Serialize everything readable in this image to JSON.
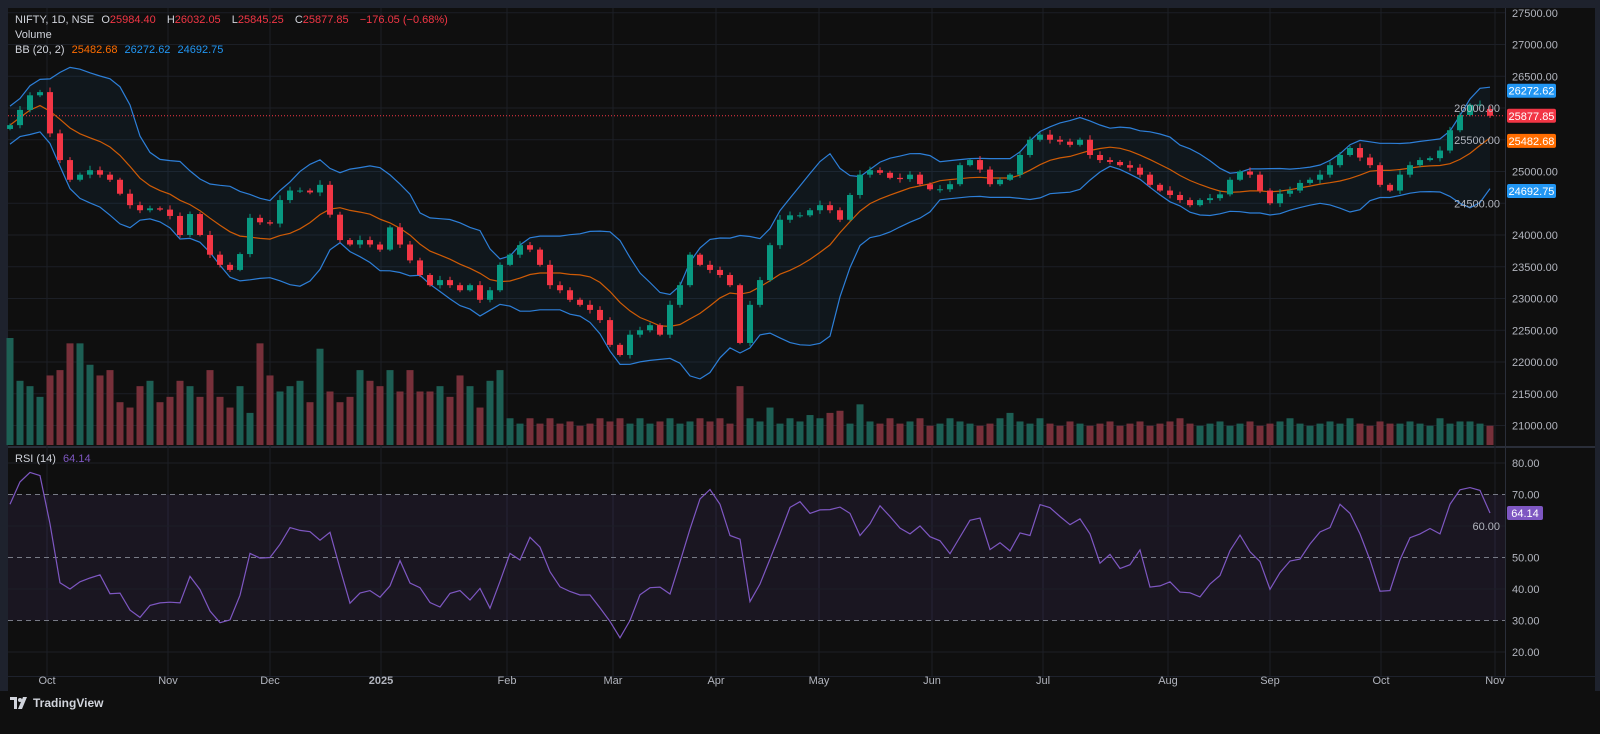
{
  "legend": {
    "symbol": "NIFTY, 1D, NSE",
    "open_label": "O",
    "open": "25984.40",
    "high_label": "H",
    "high": "26032.05",
    "low_label": "L",
    "low": "25845.25",
    "close_label": "C",
    "close": "25877.85",
    "change": "−176.05 (−0.68%)",
    "volume_label": "Volume",
    "bb_label": "BB (20, 2)",
    "bb_basis": "25482.68",
    "bb_upper": "26272.62",
    "bb_lower": "24692.75",
    "rsi_label": "RSI (14)",
    "rsi_value": "64.14"
  },
  "colors": {
    "up": "#089981",
    "down": "#f23645",
    "bb_basis": "#ff6d00",
    "bb_band": "#2d7fd8",
    "rsi": "#7e57c2",
    "badge_blue": "#2196f3"
  },
  "footer": {
    "brand": "TradingView"
  },
  "chart_data": {
    "type": "candlestick",
    "title": "NIFTY, 1D, NSE",
    "sampling": "every ~2 trading days",
    "last_candle": {
      "open": 25984.4,
      "high": 26032.05,
      "low": 25845.25,
      "close": 25877.85
    },
    "closes": [
      25730,
      25970,
      26200,
      26250,
      25600,
      25180,
      24870,
      24950,
      25020,
      24950,
      24870,
      24650,
      24470,
      24390,
      24420,
      24400,
      24300,
      24000,
      24330,
      24000,
      23690,
      23530,
      23450,
      23700,
      24270,
      24200,
      24180,
      24550,
      24700,
      24700,
      24670,
      24790,
      24320,
      23920,
      23850,
      23920,
      23850,
      23770,
      24120,
      23850,
      23600,
      23370,
      23210,
      23290,
      23210,
      23130,
      23210,
      22980,
      23130,
      23530,
      23690,
      23840,
      23770,
      23530,
      23210,
      23130,
      22980,
      22900,
      22820,
      22660,
      22270,
      22110,
      22430,
      22500,
      22580,
      22430,
      22900,
      23210,
      23690,
      23530,
      23450,
      23370,
      23210,
      22300,
      22900,
      23290,
      23840,
      24240,
      24310,
      24310,
      24390,
      24470,
      24390,
      24240,
      24630,
      24950,
      25020,
      24980,
      24900,
      24880,
      24950,
      24800,
      24720,
      24720,
      24800,
      25100,
      25180,
      25030,
      24800,
      24870,
      24950,
      25260,
      25500,
      25580,
      25500,
      25470,
      25420,
      25500,
      25260,
      25180,
      25150,
      25100,
      25060,
      24950,
      24790,
      24700,
      24630,
      24550,
      24470,
      24550,
      24580,
      24640,
      24870,
      25000,
      24950,
      24700,
      24500,
      24650,
      24700,
      24820,
      24870,
      24950,
      25100,
      25260,
      25370,
      25220,
      25100,
      24790,
      24700,
      24950,
      25100,
      25180,
      25210,
      25330,
      25650,
      25890,
      26050,
      26053.9,
      25877.85
    ],
    "volume_relative": [
      100,
      60,
      55,
      45,
      65,
      70,
      95,
      95,
      75,
      65,
      70,
      40,
      35,
      55,
      60,
      40,
      45,
      60,
      55,
      45,
      70,
      45,
      35,
      55,
      30,
      95,
      65,
      50,
      55,
      60,
      40,
      90,
      50,
      40,
      45,
      70,
      60,
      55,
      70,
      50,
      70,
      50,
      50,
      55,
      45,
      65,
      55,
      35,
      60,
      70,
      25,
      20,
      25,
      20,
      25,
      20,
      22,
      18,
      20,
      25,
      22,
      25,
      20,
      25,
      20,
      22,
      25,
      20,
      22,
      25,
      22,
      25,
      20,
      55,
      25,
      22,
      35,
      20,
      25,
      22,
      28,
      25,
      30,
      32,
      20,
      38,
      22,
      20,
      25,
      20,
      22,
      25,
      18,
      20,
      25,
      22,
      20,
      18,
      20,
      25,
      30,
      22,
      20,
      25,
      20,
      18,
      22,
      20,
      18,
      20,
      22,
      18,
      20,
      22,
      18,
      20,
      22,
      25,
      20,
      18,
      20,
      22,
      18,
      20,
      22,
      18,
      20,
      22,
      25,
      20,
      18,
      20,
      22,
      20,
      25,
      20,
      18,
      22,
      20,
      20,
      22,
      20,
      18,
      25,
      20,
      22,
      22,
      20,
      18
    ],
    "rsi": [
      66.9,
      74,
      77,
      76,
      60.7,
      42,
      40,
      42.3,
      43.5,
      44.5,
      38.5,
      38.7,
      33.3,
      31,
      34.8,
      35.6,
      35.8,
      35.6,
      44,
      39.8,
      33,
      29.3,
      30.2,
      38,
      51.3,
      49.8,
      50,
      54.2,
      59.5,
      58.6,
      58.2,
      55.5,
      58,
      46.5,
      35.5,
      38.7,
      39.5,
      37.4,
      41,
      49,
      41.9,
      40.4,
      35.7,
      34.3,
      38.6,
      39.5,
      36.5,
      40.2,
      33.9,
      42.4,
      51.3,
      49.2,
      56.4,
      53.3,
      45.5,
      40.7,
      39.2,
      38.1,
      38.1,
      34,
      29.7,
      24.5,
      30,
      38.2,
      40.4,
      40.6,
      38.4,
      48.6,
      59,
      68.6,
      71.6,
      66.9,
      57,
      55.8,
      36,
      41.6,
      49.5,
      57.5,
      65.9,
      67.7,
      64,
      65.1,
      65.2,
      66,
      64,
      57,
      60.7,
      66.4,
      63,
      59.3,
      57.5,
      60,
      56.6,
      55.3,
      51.2,
      56.5,
      61.8,
      62.5,
      52.5,
      54.7,
      52.1,
      57.8,
      57,
      66.8,
      65.8,
      63,
      60.4,
      62.3,
      57.5,
      48.2,
      51,
      46.5,
      47.7,
      52.4,
      40.6,
      41,
      42.3,
      39,
      38.8,
      37.5,
      41.6,
      44.3,
      52.2,
      57.1,
      51.8,
      48.7,
      39.9,
      45.2,
      48.9,
      49.5,
      54.3,
      58.1,
      59.5,
      66.9,
      64,
      57.5,
      49.2,
      39.3,
      39.5,
      49.3,
      56.3,
      57.5,
      59.2,
      57.5,
      66.9,
      71.5,
      72.2,
      71.3,
      64.14
    ],
    "bb_period_samples": 10,
    "bb_mult": 2,
    "price_ticks": [
      "27500.00",
      "27000.00",
      "26500.00",
      "26000.00",
      "25500.00",
      "25000.00",
      "24500.00",
      "24000.00",
      "23500.00",
      "23000.00",
      "22500.00",
      "22000.00",
      "21500.00",
      "21000.00"
    ],
    "rsi_ticks": [
      "80.00",
      "70.00",
      "60.00",
      "50.00",
      "40.00",
      "30.00",
      "20.00"
    ],
    "rsi_levels": {
      "upper": 70,
      "middle": 50,
      "lower": 30
    },
    "price_badges": [
      {
        "label": "26272.62",
        "value": 26272.62,
        "color": "#2196f3"
      },
      {
        "label": "25877.85",
        "value": 25877.85,
        "color": "#f23645"
      },
      {
        "label": "25482.68",
        "value": 25482.68,
        "color": "#ff6d00"
      },
      {
        "label": "24692.75",
        "value": 24692.75,
        "color": "#2196f3"
      }
    ],
    "rsi_badge": {
      "label": "64.14",
      "value": 64.14
    },
    "x_ticks": [
      {
        "label": "Oct",
        "at": 3.7
      },
      {
        "label": "Nov",
        "at": 15.8
      },
      {
        "label": "Dec",
        "at": 26
      },
      {
        "label": "2025",
        "at": 37.1,
        "bold": true
      },
      {
        "label": "Feb",
        "at": 49.7
      },
      {
        "label": "Mar",
        "at": 60.3
      },
      {
        "label": "Apr",
        "at": 70.6
      },
      {
        "label": "May",
        "at": 80.9
      },
      {
        "label": "Jun",
        "at": 92.2
      },
      {
        "label": "Jul",
        "at": 103.3
      },
      {
        "label": "Aug",
        "at": 115.8
      },
      {
        "label": "Sep",
        "at": 126
      },
      {
        "label": "Oct",
        "at": 137.1
      },
      {
        "label": "Nov",
        "at": 148.5
      }
    ]
  }
}
